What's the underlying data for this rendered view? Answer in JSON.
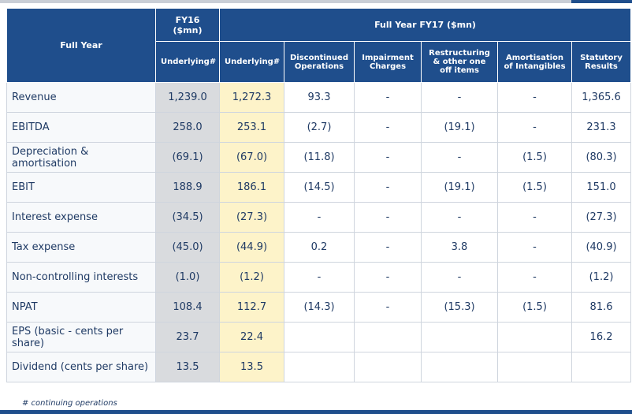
{
  "header": {
    "full_year": "Full Year",
    "fy16": "FY16\n($mn)",
    "fy17": "Full Year FY17 ($mn)",
    "sub": [
      "Underlying#",
      "Underlying#",
      "Discontinued Operations",
      "Impairment Charges",
      "Restructuring & other one off items",
      "Amortisation of Intangibles",
      "Statutory Results"
    ]
  },
  "rows": [
    {
      "label": "Revenue",
      "values": [
        "1,239.0",
        "1,272.3",
        "93.3",
        "-",
        "-",
        "-",
        "1,365.6"
      ]
    },
    {
      "label": "EBITDA",
      "values": [
        "258.0",
        "253.1",
        "(2.7)",
        "-",
        "(19.1)",
        "-",
        "231.3"
      ]
    },
    {
      "label": "Depreciation & amortisation",
      "values": [
        "(69.1)",
        "(67.0)",
        "(11.8)",
        "-",
        "-",
        "(1.5)",
        "(80.3)"
      ]
    },
    {
      "label": "EBIT",
      "values": [
        "188.9",
        "186.1",
        "(14.5)",
        "-",
        "(19.1)",
        "(1.5)",
        "151.0"
      ]
    },
    {
      "label": "Interest expense",
      "values": [
        "(34.5)",
        "(27.3)",
        "-",
        "-",
        "-",
        "-",
        "(27.3)"
      ]
    },
    {
      "label": "Tax expense",
      "values": [
        "(45.0)",
        "(44.9)",
        "0.2",
        "-",
        "3.8",
        "-",
        "(40.9)"
      ]
    },
    {
      "label": "Non-controlling interests",
      "values": [
        "(1.0)",
        "(1.2)",
        "-",
        "-",
        "-",
        "-",
        "(1.2)"
      ]
    },
    {
      "label": "NPAT",
      "values": [
        "108.4",
        "112.7",
        "(14.3)",
        "-",
        "(15.3)",
        "(1.5)",
        "81.6"
      ]
    },
    {
      "label": "EPS (basic - cents per share)",
      "values": [
        "23.7",
        "22.4",
        "",
        "",
        "",
        "",
        "16.2"
      ]
    },
    {
      "label": "Dividend (cents per share)",
      "values": [
        "13.5",
        "13.5",
        "",
        "",
        "",
        "",
        ""
      ]
    }
  ],
  "footnote": "# continuing operations",
  "colors": {
    "header": "#1f4e8c",
    "fy16_col": "#d9dbde",
    "fy17_col": "#fdf3c9",
    "text": "#1f3a64"
  }
}
